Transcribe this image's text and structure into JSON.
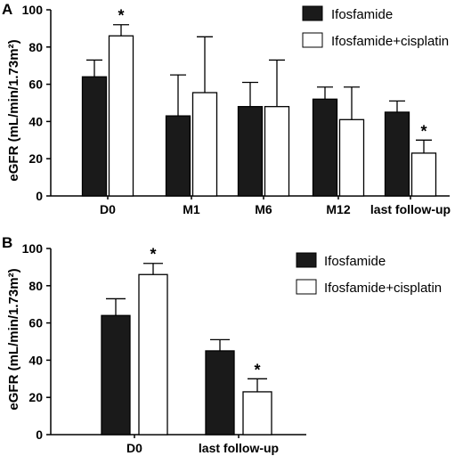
{
  "chart_data": [
    {
      "panel": "A",
      "type": "bar",
      "ylabel": "eGFR (mL/min/1.73m²)",
      "ylim": [
        0,
        100
      ],
      "yticks": [
        0,
        20,
        40,
        60,
        80,
        100
      ],
      "categories": [
        "D0",
        "M1",
        "M6",
        "M12",
        "last follow-up"
      ],
      "legend_position": "top-right",
      "series": [
        {
          "name": "Ifosfamide",
          "color": "#1a1a1a",
          "values": [
            64,
            43,
            48,
            52,
            45
          ],
          "error": [
            9,
            22,
            13,
            6.5,
            6
          ],
          "significant": [
            false,
            false,
            false,
            false,
            false
          ]
        },
        {
          "name": "Ifosfamide+cisplatin",
          "color": "#ffffff",
          "values": [
            86,
            55.5,
            48,
            41,
            23
          ],
          "error": [
            6,
            30,
            25,
            17.5,
            7
          ],
          "significant": [
            true,
            false,
            false,
            false,
            true
          ]
        }
      ],
      "annotation": "*"
    },
    {
      "panel": "B",
      "type": "bar",
      "ylabel": "eGFR (mL/min/1.73m²)",
      "ylim": [
        0,
        100
      ],
      "yticks": [
        0,
        20,
        40,
        60,
        80,
        100
      ],
      "categories": [
        "D0",
        "last follow-up"
      ],
      "legend_position": "top-right",
      "series": [
        {
          "name": "Ifosfamide",
          "color": "#1a1a1a",
          "values": [
            64,
            45
          ],
          "error": [
            9,
            6
          ],
          "significant": [
            false,
            false
          ]
        },
        {
          "name": "Ifosfamide+cisplatin",
          "color": "#ffffff",
          "values": [
            86,
            23
          ],
          "error": [
            6,
            7
          ],
          "significant": [
            true,
            true
          ]
        }
      ],
      "annotation": "*"
    }
  ]
}
